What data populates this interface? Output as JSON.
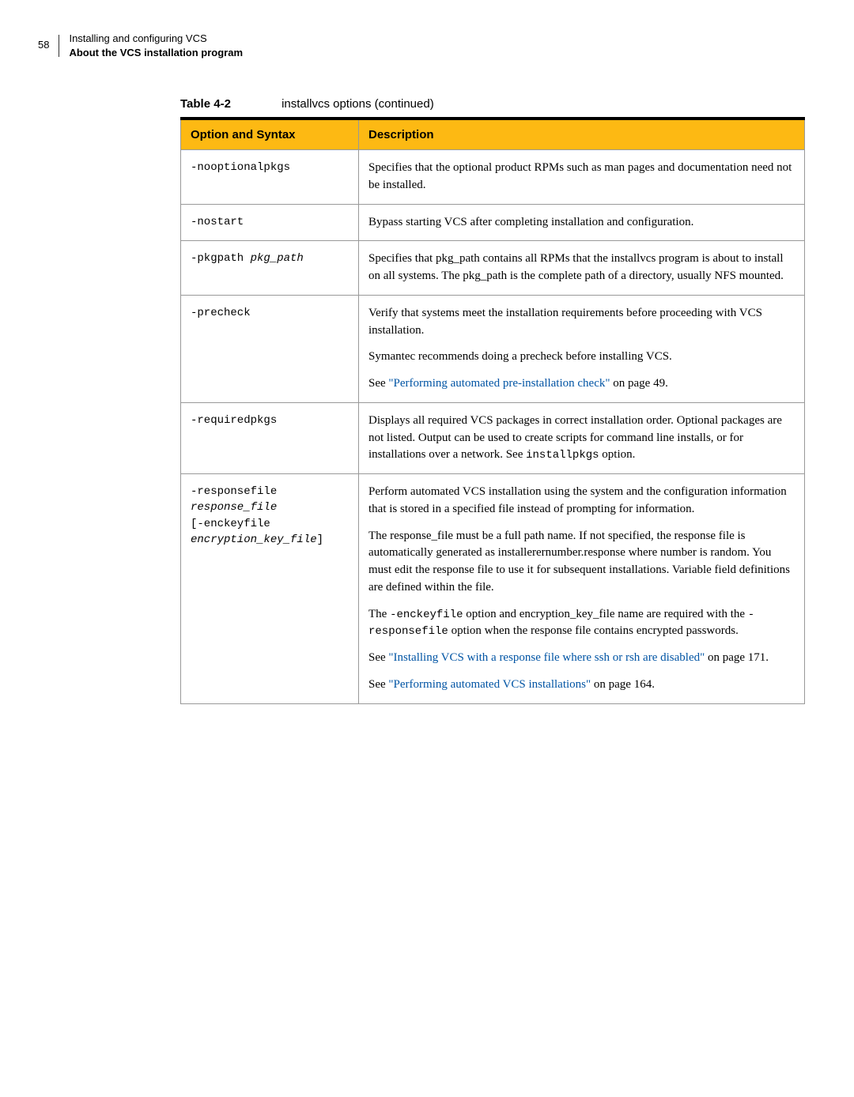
{
  "header": {
    "page_number": "58",
    "title1": "Installing and configuring VCS",
    "title2": "About the VCS installation program"
  },
  "table_caption": {
    "label": "Table 4-2",
    "text": "installvcs options (continued)"
  },
  "columns": [
    "Option and Syntax",
    "Description"
  ],
  "rows": {
    "r0": {
      "opt": "-nooptionalpkgs",
      "desc": "Specifies that the optional product RPMs such as man pages and documentation need not be installed."
    },
    "r1": {
      "opt": "-nostart",
      "desc": "Bypass starting VCS after completing installation and configuration."
    },
    "r2": {
      "opt_pre": "-pkgpath ",
      "opt_it": "pkg_path",
      "desc": "Specifies that pkg_path contains all RPMs that the installvcs program is about to install on all systems. The pkg_path is the complete path of a directory, usually NFS mounted."
    },
    "r3": {
      "opt": "-precheck",
      "p1": "Verify that systems meet the installation requirements before proceeding with VCS installation.",
      "p2": "Symantec recommends doing a precheck before installing VCS.",
      "p3a": "See ",
      "p3link": "\"Performing automated pre-installation check\"",
      "p3b": " on page 49."
    },
    "r4": {
      "opt": "-requiredpkgs",
      "d1": "Displays all required VCS packages in correct installation order. Optional packages are not listed. Output can be used to create scripts for command line installs, or for installations over a network. See ",
      "d_mono": "installpkgs",
      "d2": " option."
    },
    "r5": {
      "opt_l1": "-responsefile",
      "opt_l2": "response_file",
      "opt_l3": "[-enckeyfile",
      "opt_l4a": "encryption_key_file",
      "opt_l4b": "]",
      "p1": "Perform automated VCS installation using the system and the configuration information that is stored in a specified file instead of prompting for information.",
      "p2": "The response_file must be a full path name. If not specified, the response file is automatically generated as installerernumber.response where number is random. You must edit the response file to use it for subsequent installations. Variable field definitions are defined within the file.",
      "p3a": "The ",
      "p3m1": "-enckeyfile",
      "p3b": " option and encryption_key_file name are required with the ",
      "p3m2": "-responsefile",
      "p3c": " option when the response file contains encrypted passwords.",
      "p4a": "See ",
      "p4link": "\"Installing VCS with a response file where ssh or rsh are disabled\"",
      "p4b": " on page 171.",
      "p5a": "See ",
      "p5link": "\"Performing automated VCS installations\"",
      "p5b": " on page 164."
    }
  }
}
